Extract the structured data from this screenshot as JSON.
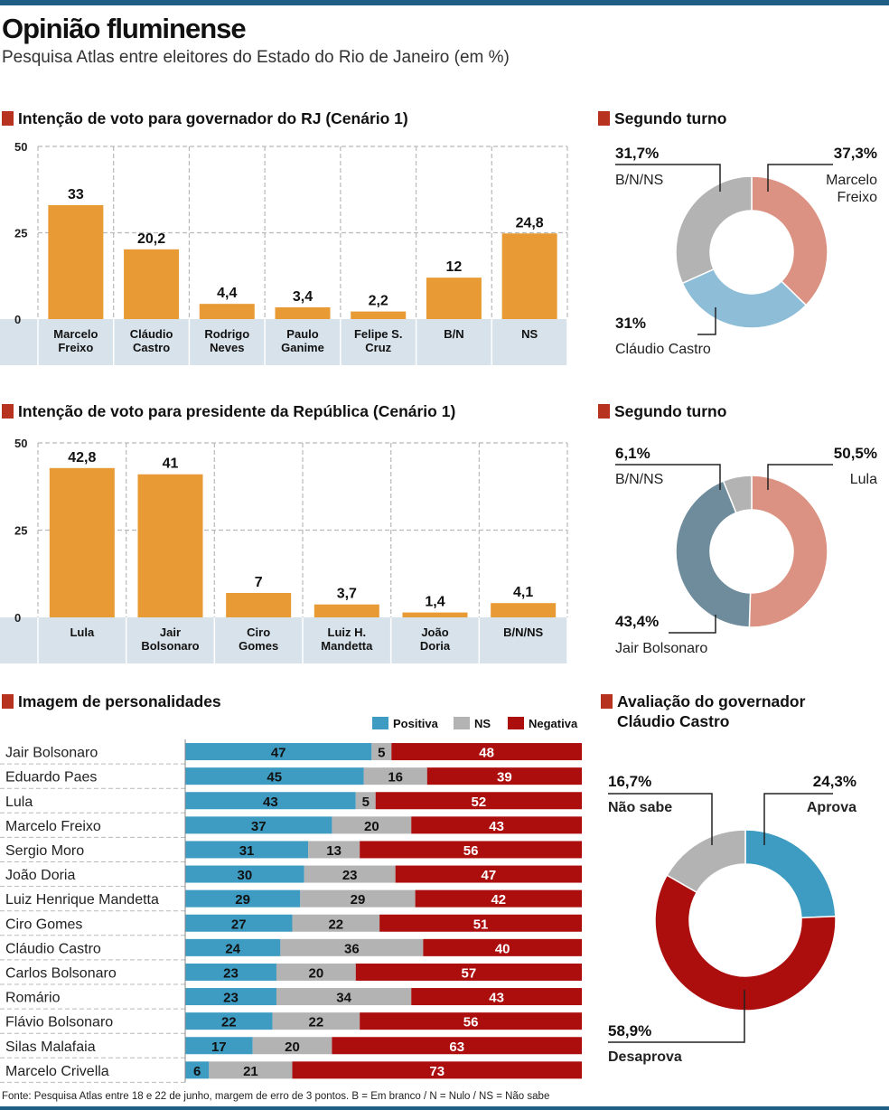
{
  "header": {
    "title": "Opinião fluminense",
    "subtitle": "Pesquisa Atlas entre eleitores do Estado do Rio de Janeiro (em %)"
  },
  "sections": {
    "governador": "Intenção de voto para governador do RJ (Cenário 1)",
    "gov_turno": "Segundo turno",
    "presidente": "Intenção de voto para presidente da República (Cenário 1)",
    "pres_turno": "Segundo turno",
    "imagem": "Imagem de personalidades",
    "avaliacao_line1": "Avaliação do governador",
    "avaliacao_line2": "Cláudio Castro"
  },
  "colors": {
    "bar": "#e89a35",
    "grid": "#b9b9b9",
    "label_band": "#d8e2ea",
    "accent": "#b7321f",
    "positiva": "#3e9cc2",
    "ns": "#b3b3b3",
    "negativa": "#ac0d0d",
    "freixo": "#db9282",
    "castro": "#8ebdd8",
    "bnns": "#b3b3b3",
    "lula": "#db9282",
    "bolsonaro": "#6f8c9c"
  },
  "source": "Fonte: Pesquisa Atlas entre 18 e 22 de junho, margem de erro de 3 pontos. B = Em branco / N = Nulo / NS = Não sabe",
  "chart_data": [
    {
      "id": "governador",
      "type": "bar",
      "title": "Intenção de voto para governador do RJ (Cenário 1)",
      "categories": [
        [
          "Marcelo",
          "Freixo"
        ],
        [
          "Cláudio",
          "Castro"
        ],
        [
          "Rodrigo",
          "Neves"
        ],
        [
          "Paulo",
          "Ganime"
        ],
        [
          "Felipe S.",
          "Cruz"
        ],
        [
          "B/N"
        ],
        [
          "NS"
        ]
      ],
      "values": [
        33,
        20.2,
        4.4,
        3.4,
        2.2,
        12,
        24.8
      ],
      "value_labels": [
        "33",
        "20,2",
        "4,4",
        "3,4",
        "2,2",
        "12",
        "24,8"
      ],
      "yticks": [
        "50",
        "25",
        "0"
      ],
      "ylim": [
        0,
        50
      ]
    },
    {
      "id": "gov_segundo_turno",
      "type": "pie",
      "title": "Segundo turno",
      "slices": [
        {
          "name": "Marcelo Freixo",
          "value": 37.3,
          "pct": "37,3%",
          "label_lines": [
            "Marcelo",
            "Freixo"
          ],
          "color_key": "freixo"
        },
        {
          "name": "Cláudio Castro",
          "value": 31,
          "pct": "31%",
          "label_lines": [
            "Cláudio Castro"
          ],
          "color_key": "castro"
        },
        {
          "name": "B/N/NS",
          "value": 31.7,
          "pct": "31,7%",
          "label_lines": [
            "B/N/NS"
          ],
          "color_key": "bnns"
        }
      ]
    },
    {
      "id": "presidente",
      "type": "bar",
      "title": "Intenção de voto para presidente da República (Cenário 1)",
      "categories": [
        [
          "Lula"
        ],
        [
          "Jair",
          "Bolsonaro"
        ],
        [
          "Ciro",
          "Gomes"
        ],
        [
          "Luiz H.",
          "Mandetta"
        ],
        [
          "João",
          "Doria"
        ],
        [
          "B/N/NS"
        ]
      ],
      "values": [
        42.8,
        41,
        7,
        3.7,
        1.4,
        4.1
      ],
      "value_labels": [
        "42,8",
        "41",
        "7",
        "3,7",
        "1,4",
        "4,1"
      ],
      "yticks": [
        "50",
        "25",
        "0"
      ],
      "ylim": [
        0,
        50
      ]
    },
    {
      "id": "pres_segundo_turno",
      "type": "pie",
      "title": "Segundo turno",
      "slices": [
        {
          "name": "Lula",
          "value": 50.5,
          "pct": "50,5%",
          "label_lines": [
            "Lula"
          ],
          "color_key": "lula"
        },
        {
          "name": "Jair Bolsonaro",
          "value": 43.4,
          "pct": "43,4%",
          "label_lines": [
            "Jair Bolsonaro"
          ],
          "color_key": "bolsonaro"
        },
        {
          "name": "B/N/NS",
          "value": 6.1,
          "pct": "6,1%",
          "label_lines": [
            "B/N/NS"
          ],
          "color_key": "bnns"
        }
      ]
    },
    {
      "id": "imagem",
      "type": "bar",
      "orientation": "horizontal-stacked",
      "title": "Imagem de personalidades",
      "legend": [
        "Positiva",
        "NS",
        "Negativa"
      ],
      "rows": [
        {
          "name": "Jair Bolsonaro",
          "positiva": 47,
          "ns": 5,
          "negativa": 48
        },
        {
          "name": "Eduardo Paes",
          "positiva": 45,
          "ns": 16,
          "negativa": 39
        },
        {
          "name": "Lula",
          "positiva": 43,
          "ns": 5,
          "negativa": 52
        },
        {
          "name": "Marcelo Freixo",
          "positiva": 37,
          "ns": 20,
          "negativa": 43
        },
        {
          "name": "Sergio Moro",
          "positiva": 31,
          "ns": 13,
          "negativa": 56
        },
        {
          "name": "João Doria",
          "positiva": 30,
          "ns": 23,
          "negativa": 47
        },
        {
          "name": "Luiz Henrique Mandetta",
          "positiva": 29,
          "ns": 29,
          "negativa": 42
        },
        {
          "name": "Ciro Gomes",
          "positiva": 27,
          "ns": 22,
          "negativa": 51
        },
        {
          "name": "Cláudio Castro",
          "positiva": 24,
          "ns": 36,
          "negativa": 40
        },
        {
          "name": "Carlos Bolsonaro",
          "positiva": 23,
          "ns": 20,
          "negativa": 57
        },
        {
          "name": "Romário",
          "positiva": 23,
          "ns": 34,
          "negativa": 43
        },
        {
          "name": "Flávio Bolsonaro",
          "positiva": 22,
          "ns": 22,
          "negativa": 56
        },
        {
          "name": "Silas Malafaia",
          "positiva": 17,
          "ns": 20,
          "negativa": 63
        },
        {
          "name": "Marcelo Crivella",
          "positiva": 6,
          "ns": 21,
          "negativa": 73
        }
      ]
    },
    {
      "id": "avaliacao",
      "type": "pie",
      "title": "Avaliação do governador Cláudio Castro",
      "slices": [
        {
          "name": "Aprova",
          "value": 24.3,
          "pct": "24,3%",
          "label_lines": [
            "Aprova"
          ],
          "color_key": "positiva"
        },
        {
          "name": "Desaprova",
          "value": 58.9,
          "pct": "58,9%",
          "label_lines": [
            "Desaprova"
          ],
          "color_key": "negativa"
        },
        {
          "name": "Não sabe",
          "value": 16.7,
          "pct": "16,7%",
          "label_lines": [
            "Não sabe"
          ],
          "color_key": "ns"
        }
      ]
    }
  ]
}
